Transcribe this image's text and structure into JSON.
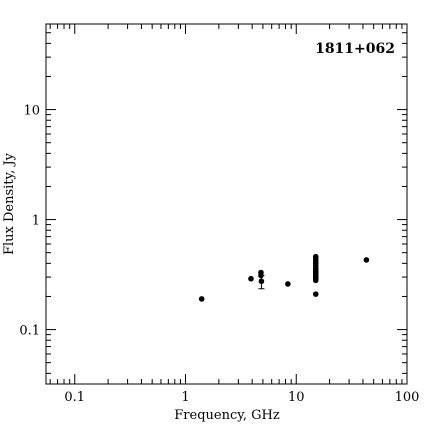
{
  "chart_data": {
    "type": "scatter",
    "title": "1811+062",
    "xlabel": "Frequency, GHz",
    "ylabel": "Flux Density, Jy",
    "xscale": "log",
    "yscale": "log",
    "xlim": [
      0.055,
      100
    ],
    "ylim": [
      0.032,
      60
    ],
    "grid": false,
    "legend": "none",
    "x_ticks": [
      {
        "value": 0.1,
        "label": "0.1"
      },
      {
        "value": 1,
        "label": "1"
      },
      {
        "value": 10,
        "label": "10"
      },
      {
        "value": 100,
        "label": "100"
      }
    ],
    "y_ticks": [
      {
        "value": 0.1,
        "label": "0.1"
      },
      {
        "value": 1,
        "label": "1"
      },
      {
        "value": 10,
        "label": "10"
      }
    ],
    "points": [
      {
        "x": 1.4,
        "y": 0.19
      },
      {
        "x": 3.9,
        "y": 0.29
      },
      {
        "x": 4.8,
        "y": 0.33
      },
      {
        "x": 4.8,
        "y": 0.31
      },
      {
        "x": 4.85,
        "y": 0.275,
        "err_low": 0.235,
        "err_high": 0.31
      },
      {
        "x": 8.4,
        "y": 0.26
      },
      {
        "x": 15.0,
        "y": 0.21
      },
      {
        "x": 15.0,
        "y": 0.28
      },
      {
        "x": 15.0,
        "y": 0.29
      },
      {
        "x": 15.0,
        "y": 0.3
      },
      {
        "x": 15.0,
        "y": 0.31
      },
      {
        "x": 15.0,
        "y": 0.32
      },
      {
        "x": 15.0,
        "y": 0.33
      },
      {
        "x": 15.0,
        "y": 0.34
      },
      {
        "x": 15.0,
        "y": 0.35
      },
      {
        "x": 15.0,
        "y": 0.36
      },
      {
        "x": 15.0,
        "y": 0.38
      },
      {
        "x": 15.0,
        "y": 0.4
      },
      {
        "x": 15.0,
        "y": 0.42
      },
      {
        "x": 15.0,
        "y": 0.44
      },
      {
        "x": 15.0,
        "y": 0.46
      },
      {
        "x": 43.0,
        "y": 0.43
      }
    ]
  }
}
